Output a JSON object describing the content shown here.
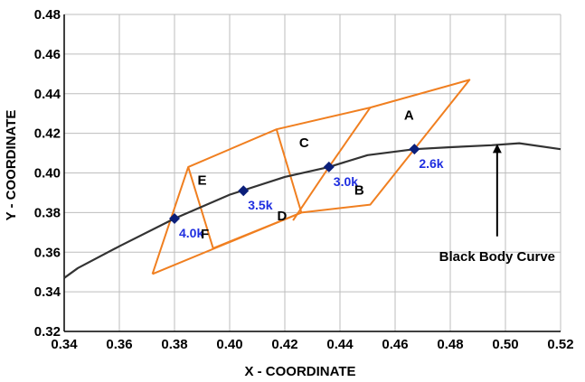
{
  "chart_data": {
    "type": "line",
    "xlabel": "X - COORDINATE",
    "ylabel": "Y - COORDINATE",
    "xlim": [
      0.34,
      0.52
    ],
    "ylim": [
      0.32,
      0.48
    ],
    "xticks": [
      0.34,
      0.36,
      0.38,
      0.4,
      0.42,
      0.44,
      0.46,
      0.48,
      0.5,
      0.52
    ],
    "yticks": [
      0.32,
      0.34,
      0.36,
      0.38,
      0.4,
      0.42,
      0.44,
      0.46,
      0.48
    ],
    "xtick_labels": [
      "0.34",
      "0.36",
      "0.38",
      "0.40",
      "0.42",
      "0.44",
      "0.46",
      "0.48",
      "0.50",
      "0.52"
    ],
    "ytick_labels": [
      "0.32",
      "0.34",
      "0.36",
      "0.38",
      "0.40",
      "0.42",
      "0.44",
      "0.46",
      "0.48"
    ],
    "grid": true,
    "colors": {
      "curve": "#333333",
      "regions": "#f07f20",
      "markers": "#0b1f7a",
      "cct_text": "#1f2ee0",
      "grid": "#bdbdbd"
    },
    "black_body_curve": {
      "x": [
        0.34,
        0.345,
        0.36,
        0.38,
        0.4,
        0.42,
        0.436,
        0.45,
        0.467,
        0.48,
        0.495,
        0.505,
        0.52
      ],
      "y": [
        0.347,
        0.352,
        0.363,
        0.377,
        0.389,
        0.398,
        0.403,
        0.409,
        0.412,
        0.413,
        0.414,
        0.415,
        0.412
      ]
    },
    "points": [
      {
        "label": "4.0k",
        "x": 0.38,
        "y": 0.377
      },
      {
        "label": "3.5k",
        "x": 0.405,
        "y": 0.391
      },
      {
        "label": "3.0k",
        "x": 0.436,
        "y": 0.403
      },
      {
        "label": "2.6k",
        "x": 0.467,
        "y": 0.412
      }
    ],
    "regions": [
      {
        "label": "A",
        "x": [
          0.451,
          0.487,
          0.451,
          0.467
        ],
        "y": [
          0.433,
          0.447,
          0.384,
          0.412
        ]
      },
      {
        "label": "B",
        "x": [
          0.436,
          0.467,
          0.451,
          0.426
        ],
        "y": [
          0.403,
          0.412,
          0.384,
          0.38
        ]
      },
      {
        "label": "C",
        "x": [
          0.417,
          0.451,
          0.436,
          0.405
        ],
        "y": [
          0.422,
          0.433,
          0.403,
          0.391
        ]
      },
      {
        "label": "D",
        "x": [
          0.405,
          0.436,
          0.426,
          0.394
        ],
        "y": [
          0.391,
          0.403,
          0.38,
          0.362
        ]
      },
      {
        "label": "E",
        "x": [
          0.385,
          0.417,
          0.405,
          0.38
        ],
        "y": [
          0.403,
          0.422,
          0.391,
          0.377
        ]
      },
      {
        "label": "F",
        "x": [
          0.38,
          0.405,
          0.394,
          0.372
        ],
        "y": [
          0.377,
          0.391,
          0.362,
          0.349
        ]
      }
    ],
    "region_outline": [
      [
        [
          0.372,
          0.349
        ],
        [
          0.385,
          0.403
        ],
        [
          0.417,
          0.422
        ],
        [
          0.451,
          0.433
        ],
        [
          0.487,
          0.447
        ],
        [
          0.451,
          0.384
        ],
        [
          0.426,
          0.38
        ],
        [
          0.372,
          0.349
        ]
      ],
      [
        [
          0.385,
          0.403
        ],
        [
          0.394,
          0.362
        ]
      ],
      [
        [
          0.417,
          0.422
        ],
        [
          0.426,
          0.38
        ]
      ],
      [
        [
          0.451,
          0.433
        ],
        [
          0.436,
          0.403
        ],
        [
          0.423,
          0.376
        ]
      ],
      [
        [
          0.394,
          0.362
        ],
        [
          0.426,
          0.38
        ]
      ]
    ],
    "region_label_pos": {
      "A": [
        0.465,
        0.427
      ],
      "B": [
        0.447,
        0.389
      ],
      "C": [
        0.427,
        0.413
      ],
      "D": [
        0.419,
        0.376
      ],
      "E": [
        0.39,
        0.394
      ],
      "F": [
        0.391,
        0.367
      ]
    },
    "annotation": {
      "text": "Black Body Curve",
      "x": 0.497,
      "y": 0.361,
      "arrow_from": [
        0.497,
        0.368
      ],
      "arrow_to": [
        0.497,
        0.416
      ]
    }
  }
}
